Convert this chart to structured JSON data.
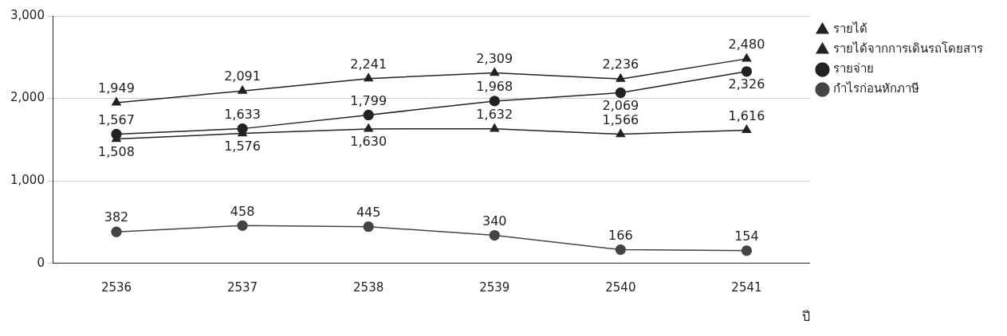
{
  "chart_data": {
    "type": "line",
    "xlabel": "ปี",
    "categories": [
      "2536",
      "2537",
      "2538",
      "2539",
      "2540",
      "2541"
    ],
    "series": [
      {
        "name": "รายได้",
        "color": "#222222",
        "marker": "triangle",
        "values": [
          1949,
          2091,
          2241,
          2309,
          2236,
          2480
        ],
        "value_labels": [
          "1,949",
          "2,091",
          "2,241",
          "2,309",
          "2,236",
          "2,480"
        ]
      },
      {
        "name": "รายได้จากการเดินรถโดยสาร",
        "color": "#222222",
        "marker": "triangle",
        "values": [
          1508,
          1576,
          1630,
          1632,
          1566,
          1616
        ],
        "value_labels": [
          "1,508",
          "1,576",
          "1,630",
          "1,632",
          "1,566",
          "1,616"
        ]
      },
      {
        "name": "รายจ่าย",
        "color": "#222222",
        "marker": "circle",
        "values": [
          1567,
          1633,
          1799,
          1968,
          2069,
          2326
        ],
        "value_labels": [
          "1,567",
          "1,633",
          "1,799",
          "1,968",
          "2,069",
          "2,326"
        ]
      },
      {
        "name": "กำไรก่อนหักภาษี",
        "color": "#444444",
        "marker": "circle",
        "values": [
          382,
          458,
          445,
          340,
          166,
          154
        ],
        "value_labels": [
          "382",
          "458",
          "445",
          "340",
          "166",
          "154"
        ]
      }
    ],
    "ylim": [
      0,
      3000
    ],
    "yticks": [
      {
        "value": 0,
        "label": "0"
      },
      {
        "value": 1000,
        "label": "1,000"
      },
      {
        "value": 2000,
        "label": "2,000"
      },
      {
        "value": 3000,
        "label": "3,000"
      }
    ],
    "grid": "y",
    "legend": "right"
  }
}
